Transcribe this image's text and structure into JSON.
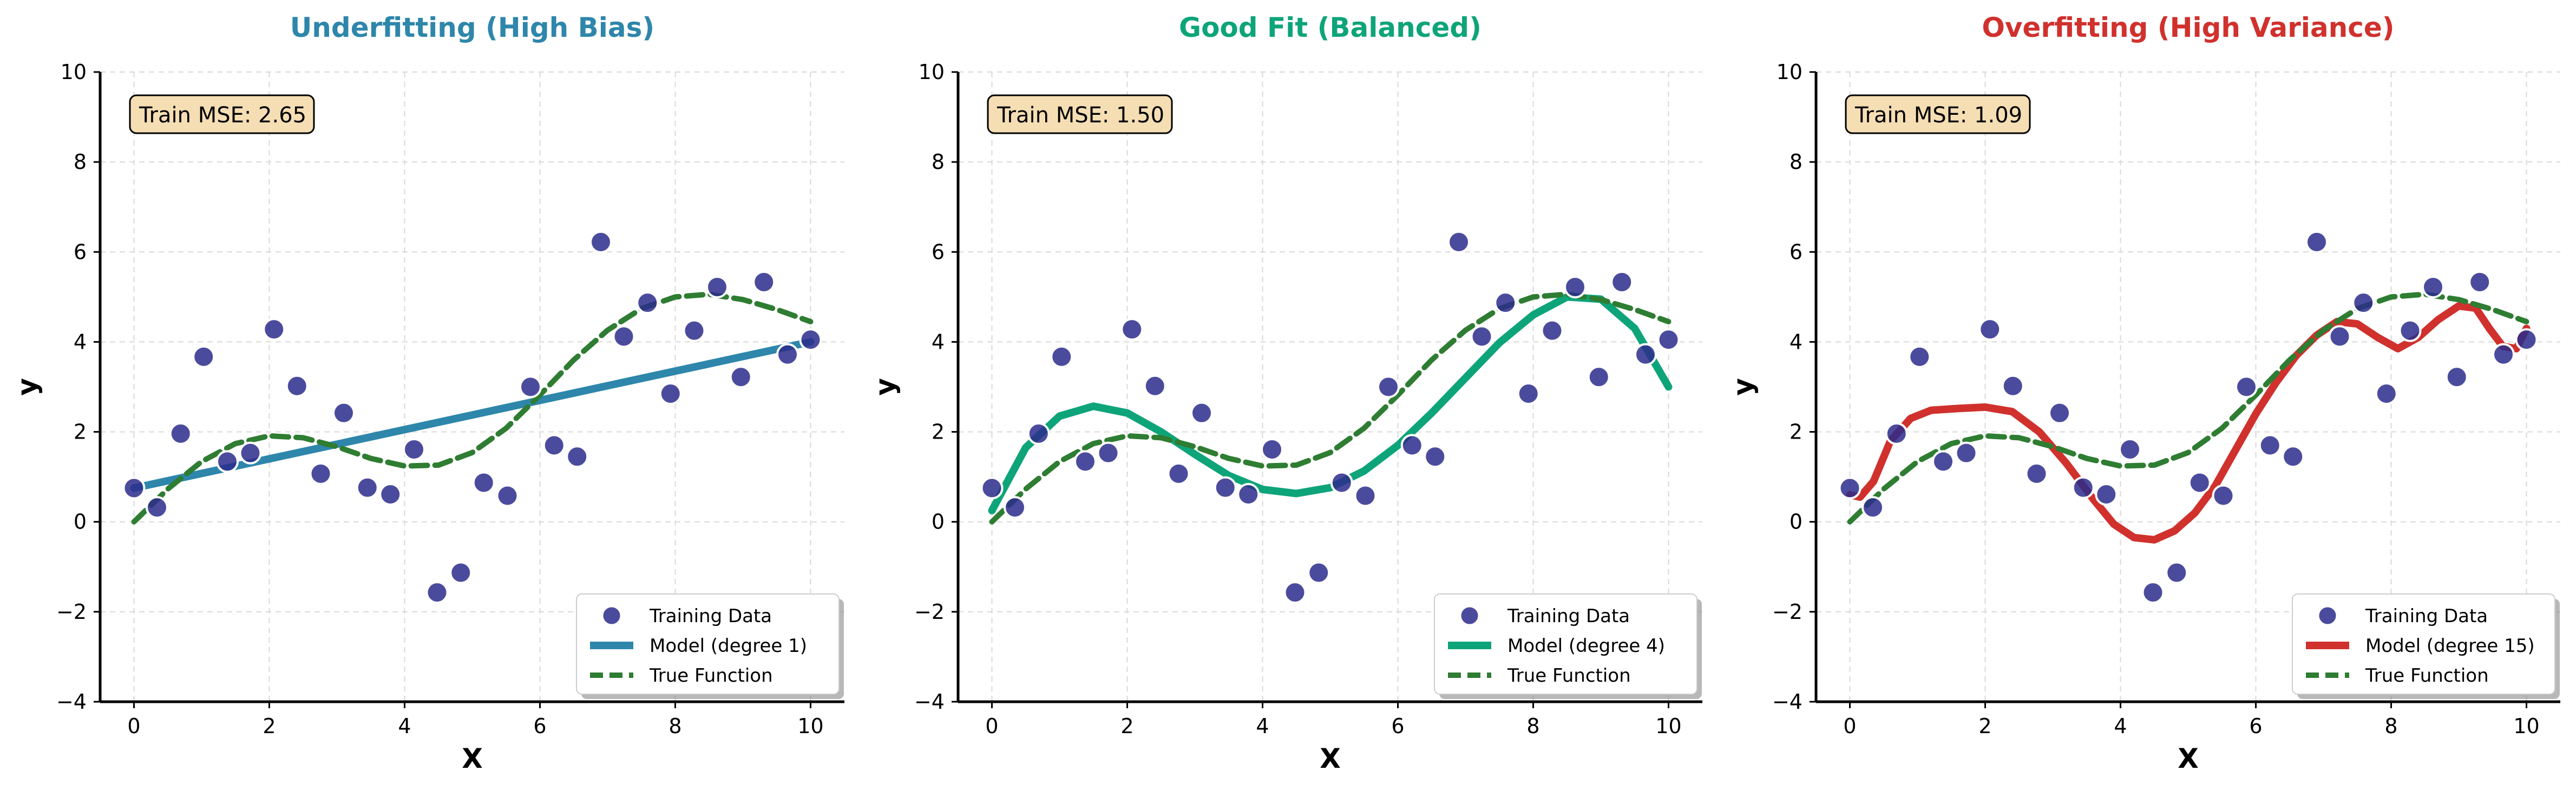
{
  "chart_data": [
    {
      "type": "line",
      "title": "Underfitting (High Bias)",
      "title_color": "#2e86ab",
      "xlabel": "X",
      "ylabel": "y",
      "xlim": [
        -0.5,
        10.5
      ],
      "ylim": [
        -4,
        10
      ],
      "xticks": [
        "0",
        "2",
        "4",
        "6",
        "8",
        "10"
      ],
      "yticks": [
        "−4",
        "−2",
        "0",
        "2",
        "4",
        "6",
        "8",
        "10"
      ],
      "grid": true,
      "legend_position": "lower-right",
      "annotation": "Train MSE: 2.65",
      "model_color": "#2e86ab",
      "series": [
        {
          "name": "Training Data",
          "kind": "scatter",
          "color": "#2b2b8c",
          "x": [
            0,
            0.34,
            0.69,
            1.03,
            1.38,
            1.72,
            2.07,
            2.41,
            2.76,
            3.1,
            3.45,
            3.79,
            4.14,
            4.48,
            4.83,
            5.17,
            5.52,
            5.86,
            6.21,
            6.55,
            6.9,
            7.24,
            7.59,
            7.93,
            8.28,
            8.62,
            8.97,
            9.31,
            9.66,
            10
          ],
          "y": [
            0.75,
            0.32,
            1.96,
            3.67,
            1.34,
            1.53,
            4.28,
            3.02,
            1.07,
            2.42,
            0.76,
            0.61,
            1.61,
            -1.57,
            -1.13,
            0.87,
            0.58,
            3.0,
            1.7,
            1.45,
            6.22,
            4.12,
            4.87,
            2.85,
            4.25,
            5.22,
            3.22,
            5.33,
            3.72,
            4.05
          ]
        },
        {
          "name": "Model (degree 1)",
          "kind": "line",
          "color": "#2e86ab",
          "x": [
            0,
            10
          ],
          "y": [
            0.75,
            4.0
          ]
        },
        {
          "name": "True Function",
          "kind": "line-dashed",
          "color": "#2e7d32",
          "x": [
            0,
            0.5,
            1,
            1.5,
            2,
            2.5,
            3,
            3.5,
            4,
            4.5,
            5,
            5.5,
            6,
            6.5,
            7,
            7.5,
            8,
            8.5,
            9,
            9.5,
            10
          ],
          "y": [
            0.0,
            0.73,
            1.34,
            1.74,
            1.91,
            1.87,
            1.67,
            1.41,
            1.24,
            1.26,
            1.54,
            2.08,
            2.82,
            3.6,
            4.26,
            4.74,
            5.0,
            5.06,
            4.94,
            4.72,
            4.45
          ]
        }
      ]
    },
    {
      "type": "line",
      "title": "Good Fit (Balanced)",
      "title_color": "#0ea47a",
      "xlabel": "X",
      "ylabel": "y",
      "xlim": [
        -0.5,
        10.5
      ],
      "ylim": [
        -4,
        10
      ],
      "xticks": [
        "0",
        "2",
        "4",
        "6",
        "8",
        "10"
      ],
      "yticks": [
        "−4",
        "−2",
        "0",
        "2",
        "4",
        "6",
        "8",
        "10"
      ],
      "grid": true,
      "legend_position": "lower-right",
      "annotation": "Train MSE: 1.50",
      "model_color": "#0ea47a",
      "series": [
        {
          "name": "Training Data",
          "kind": "scatter",
          "color": "#2b2b8c",
          "x": [
            0,
            0.34,
            0.69,
            1.03,
            1.38,
            1.72,
            2.07,
            2.41,
            2.76,
            3.1,
            3.45,
            3.79,
            4.14,
            4.48,
            4.83,
            5.17,
            5.52,
            5.86,
            6.21,
            6.55,
            6.9,
            7.24,
            7.59,
            7.93,
            8.28,
            8.62,
            8.97,
            9.31,
            9.66,
            10
          ],
          "y": [
            0.75,
            0.32,
            1.96,
            3.67,
            1.34,
            1.53,
            4.28,
            3.02,
            1.07,
            2.42,
            0.76,
            0.61,
            1.61,
            -1.57,
            -1.13,
            0.87,
            0.58,
            3.0,
            1.7,
            1.45,
            6.22,
            4.12,
            4.87,
            2.85,
            4.25,
            5.22,
            3.22,
            5.33,
            3.72,
            4.05
          ]
        },
        {
          "name": "Model (degree 4)",
          "kind": "line",
          "color": "#0ea47a",
          "x": [
            0,
            0.5,
            1,
            1.5,
            2,
            2.5,
            3,
            3.5,
            4,
            4.5,
            5,
            5.5,
            6,
            6.5,
            7,
            7.5,
            8,
            8.5,
            9,
            9.5,
            10
          ],
          "y": [
            0.25,
            1.65,
            2.35,
            2.57,
            2.42,
            2.0,
            1.5,
            1.03,
            0.72,
            0.63,
            0.76,
            1.13,
            1.7,
            2.42,
            3.2,
            3.98,
            4.6,
            5.0,
            4.95,
            4.3,
            3.0
          ]
        },
        {
          "name": "True Function",
          "kind": "line-dashed",
          "color": "#2e7d32",
          "x": [
            0,
            0.5,
            1,
            1.5,
            2,
            2.5,
            3,
            3.5,
            4,
            4.5,
            5,
            5.5,
            6,
            6.5,
            7,
            7.5,
            8,
            8.5,
            9,
            9.5,
            10
          ],
          "y": [
            0.0,
            0.73,
            1.34,
            1.74,
            1.91,
            1.87,
            1.67,
            1.41,
            1.24,
            1.26,
            1.54,
            2.08,
            2.82,
            3.6,
            4.26,
            4.74,
            5.0,
            5.06,
            4.94,
            4.72,
            4.45
          ]
        }
      ]
    },
    {
      "type": "line",
      "title": "Overfitting (High Variance)",
      "title_color": "#d0312d",
      "xlabel": "X",
      "ylabel": "y",
      "xlim": [
        -0.5,
        10.5
      ],
      "ylim": [
        -4,
        10
      ],
      "xticks": [
        "0",
        "2",
        "4",
        "6",
        "8",
        "10"
      ],
      "yticks": [
        "−4",
        "−2",
        "0",
        "2",
        "4",
        "6",
        "8",
        "10"
      ],
      "grid": true,
      "legend_position": "lower-right",
      "annotation": "Train MSE: 1.09",
      "model_color": "#d0312d",
      "series": [
        {
          "name": "Training Data",
          "kind": "scatter",
          "color": "#2b2b8c",
          "x": [
            0,
            0.34,
            0.69,
            1.03,
            1.38,
            1.72,
            2.07,
            2.41,
            2.76,
            3.1,
            3.45,
            3.79,
            4.14,
            4.48,
            4.83,
            5.17,
            5.52,
            5.86,
            6.21,
            6.55,
            6.9,
            7.24,
            7.59,
            7.93,
            8.28,
            8.62,
            8.97,
            9.31,
            9.66,
            10
          ],
          "y": [
            0.75,
            0.32,
            1.96,
            3.67,
            1.34,
            1.53,
            4.28,
            3.02,
            1.07,
            2.42,
            0.76,
            0.61,
            1.61,
            -1.57,
            -1.13,
            0.87,
            0.58,
            3.0,
            1.7,
            1.45,
            6.22,
            4.12,
            4.87,
            2.85,
            4.25,
            5.22,
            3.22,
            5.33,
            3.72,
            4.05
          ]
        },
        {
          "name": "Model (degree 15)",
          "kind": "line",
          "color": "#d0312d",
          "x": [
            0,
            0.15,
            0.35,
            0.6,
            0.9,
            1.2,
            1.6,
            2.0,
            2.4,
            2.8,
            3.2,
            3.6,
            3.9,
            4.2,
            4.5,
            4.8,
            5.1,
            5.4,
            5.7,
            6.0,
            6.3,
            6.6,
            6.9,
            7.2,
            7.5,
            7.8,
            8.1,
            8.4,
            8.7,
            9.0,
            9.25,
            9.45,
            9.65,
            9.85,
            10
          ],
          "y": [
            0.6,
            0.55,
            0.9,
            1.8,
            2.3,
            2.48,
            2.52,
            2.55,
            2.45,
            2.0,
            1.3,
            0.5,
            -0.05,
            -0.35,
            -0.4,
            -0.2,
            0.2,
            0.8,
            1.6,
            2.4,
            3.1,
            3.7,
            4.15,
            4.45,
            4.4,
            4.1,
            3.85,
            4.1,
            4.5,
            4.8,
            4.75,
            4.3,
            3.9,
            3.85,
            4.3
          ]
        },
        {
          "name": "True Function",
          "kind": "line-dashed",
          "color": "#2e7d32",
          "x": [
            0,
            0.5,
            1,
            1.5,
            2,
            2.5,
            3,
            3.5,
            4,
            4.5,
            5,
            5.5,
            6,
            6.5,
            7,
            7.5,
            8,
            8.5,
            9,
            9.5,
            10
          ],
          "y": [
            0.0,
            0.73,
            1.34,
            1.74,
            1.91,
            1.87,
            1.67,
            1.41,
            1.24,
            1.26,
            1.54,
            2.08,
            2.82,
            3.6,
            4.26,
            4.74,
            5.0,
            5.06,
            4.94,
            4.72,
            4.45
          ]
        }
      ]
    }
  ]
}
